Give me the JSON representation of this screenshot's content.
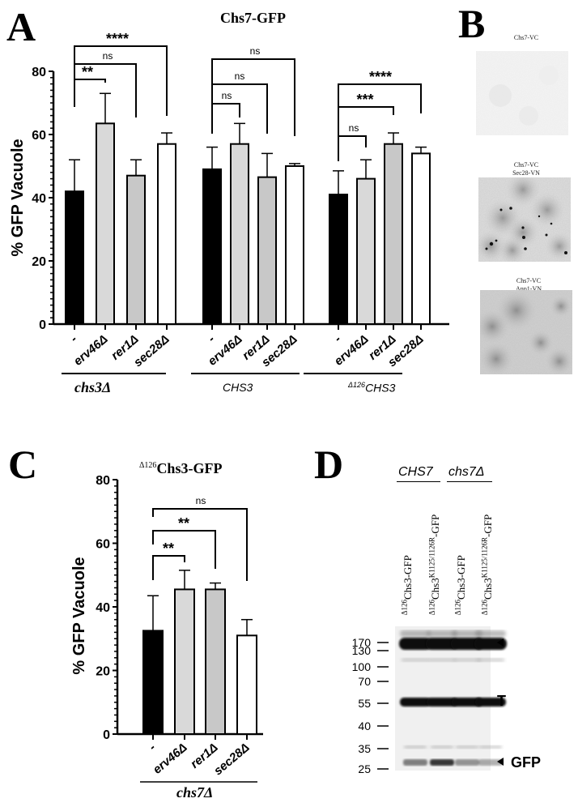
{
  "panels": {
    "A": {
      "letter": "A",
      "title": "Chs7-GFP"
    },
    "B": {
      "letter": "B"
    },
    "C": {
      "letter": "C",
      "title_prefix": "Δ126",
      "title": "Chs3-GFP"
    },
    "D": {
      "letter": "D"
    }
  },
  "chart_data": [
    {
      "panel": "A",
      "type": "bar",
      "title": "Chs7-GFP",
      "ylabel": "% GFP Vacuole",
      "xlabel": "",
      "ylim": [
        0,
        80
      ],
      "yticks": [
        0,
        20,
        40,
        60,
        80
      ],
      "groups": [
        {
          "name": "chs3Δ",
          "categories": [
            "-",
            "erv46Δ",
            "rer1Δ",
            "sec28Δ"
          ],
          "values": [
            42,
            63.5,
            47,
            57
          ],
          "errors": [
            10,
            9.5,
            5,
            3.5
          ],
          "colors": [
            "#000000",
            "#d9d9d9",
            "#c8c8c8",
            "#ffffff"
          ],
          "comparisons": [
            {
              "from": "-",
              "to": "erv46Δ",
              "label": "**"
            },
            {
              "from": "-",
              "to": "rer1Δ",
              "label": "ns"
            },
            {
              "from": "-",
              "to": "sec28Δ",
              "label": "****"
            }
          ]
        },
        {
          "name": "CHS3",
          "categories": [
            "-",
            "erv46Δ",
            "rer1Δ",
            "sec28Δ"
          ],
          "values": [
            49,
            57,
            46.5,
            50
          ],
          "errors": [
            7,
            6.5,
            7.5,
            0.8
          ],
          "colors": [
            "#000000",
            "#d9d9d9",
            "#c8c8c8",
            "#ffffff"
          ],
          "comparisons": [
            {
              "from": "-",
              "to": "erv46Δ",
              "label": "ns"
            },
            {
              "from": "-",
              "to": "rer1Δ",
              "label": "ns"
            },
            {
              "from": "-",
              "to": "sec28Δ",
              "label": "ns"
            }
          ]
        },
        {
          "name": "Δ126CHS3",
          "categories": [
            "-",
            "erv46Δ",
            "rer1Δ",
            "sec28Δ"
          ],
          "values": [
            41,
            46,
            57,
            54
          ],
          "errors": [
            7.5,
            6,
            3.5,
            2
          ],
          "colors": [
            "#000000",
            "#d9d9d9",
            "#c8c8c8",
            "#ffffff"
          ],
          "comparisons": [
            {
              "from": "-",
              "to": "erv46Δ",
              "label": "ns"
            },
            {
              "from": "-",
              "to": "rer1Δ",
              "label": "***"
            },
            {
              "from": "-",
              "to": "sec28Δ",
              "label": "****"
            }
          ]
        }
      ],
      "group_labels": [
        {
          "text": "chs3Δ",
          "style": "serif-bold-italic"
        },
        {
          "text": "CHS3",
          "style": "italic"
        },
        {
          "prefix": "Δ126",
          "text": "CHS3",
          "style": "italic"
        }
      ]
    },
    {
      "panel": "C",
      "type": "bar",
      "title": "Δ126Chs3-GFP",
      "ylabel": "% GFP Vacuole",
      "xlabel": "chs7Δ",
      "ylim": [
        0,
        80
      ],
      "yticks": [
        0,
        20,
        40,
        60,
        80
      ],
      "categories": [
        "-",
        "erv46Δ",
        "rer1Δ",
        "sec28Δ"
      ],
      "values": [
        32.5,
        45.5,
        45.5,
        31
      ],
      "errors": [
        11,
        6,
        2,
        5
      ],
      "colors": [
        "#000000",
        "#d9d9d9",
        "#c8c8c8",
        "#ffffff"
      ],
      "comparisons": [
        {
          "from": "-",
          "to": "erv46Δ",
          "label": "**"
        },
        {
          "from": "-",
          "to": "rer1Δ",
          "label": "**"
        },
        {
          "from": "-",
          "to": "sec28Δ",
          "label": "ns"
        }
      ]
    }
  ],
  "microscopy": [
    {
      "label_lines": [
        "Chs7-VC"
      ],
      "intensity": "faint"
    },
    {
      "label_lines": [
        "Chs7-VC",
        "Sec28-VN"
      ],
      "intensity": "punctate"
    },
    {
      "label_lines": [
        "Chs7-VC",
        "Anp1-VN"
      ],
      "intensity": "diffuse"
    }
  ],
  "western": {
    "strain_headers": [
      "CHS7",
      "chs7Δ"
    ],
    "lanes": [
      {
        "prefix": "Δ126",
        "main": "Chs3",
        "sup": "",
        "suffix": "-GFP"
      },
      {
        "prefix": "Δ126",
        "main": "Chs3",
        "sup": "K1125/1126R",
        "suffix": "-GFP"
      },
      {
        "prefix": "Δ126",
        "main": "Chs3",
        "sup": "",
        "suffix": "-GFP"
      },
      {
        "prefix": "Δ126",
        "main": "Chs3",
        "sup": "K1125/1126R",
        "suffix": "-GFP"
      }
    ],
    "markers": [
      "170",
      "130",
      "100",
      "70",
      "55",
      "40",
      "35",
      "25"
    ],
    "band_labels": {
      "T": "T",
      "GFP": "GFP"
    }
  }
}
